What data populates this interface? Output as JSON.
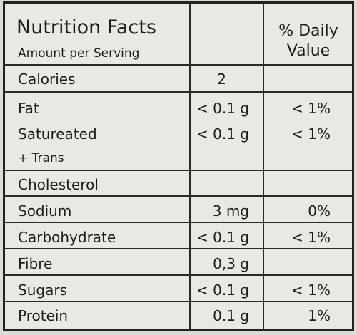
{
  "header": {
    "title": "Nutrition Facts",
    "subtitle": "Amount per Serving",
    "daily_value_line1": "% Daily",
    "daily_value_line2": "Value"
  },
  "rows": [
    {
      "name": "Calories",
      "amount": "2",
      "daily": ""
    },
    {
      "name": "Fat",
      "amount": "< 0.1 g",
      "daily": "< 1%"
    },
    {
      "name": "Satureated",
      "amount": "< 0.1 g",
      "daily": "< 1%"
    },
    {
      "name": "+ Trans",
      "amount": "",
      "daily": ""
    },
    {
      "name": "Cholesterol",
      "amount": "",
      "daily": ""
    },
    {
      "name": "Sodium",
      "amount": "3 mg",
      "daily": "0%"
    },
    {
      "name": "Carbohydrate",
      "amount": "< 0.1 g",
      "daily": "< 1%"
    },
    {
      "name": "Fibre",
      "amount": "0,3 g",
      "daily": ""
    },
    {
      "name": "Sugars",
      "amount": "< 0.1 g",
      "daily": "< 1%"
    },
    {
      "name": "Protein",
      "amount": "0.1 g",
      "daily": "1%"
    }
  ]
}
